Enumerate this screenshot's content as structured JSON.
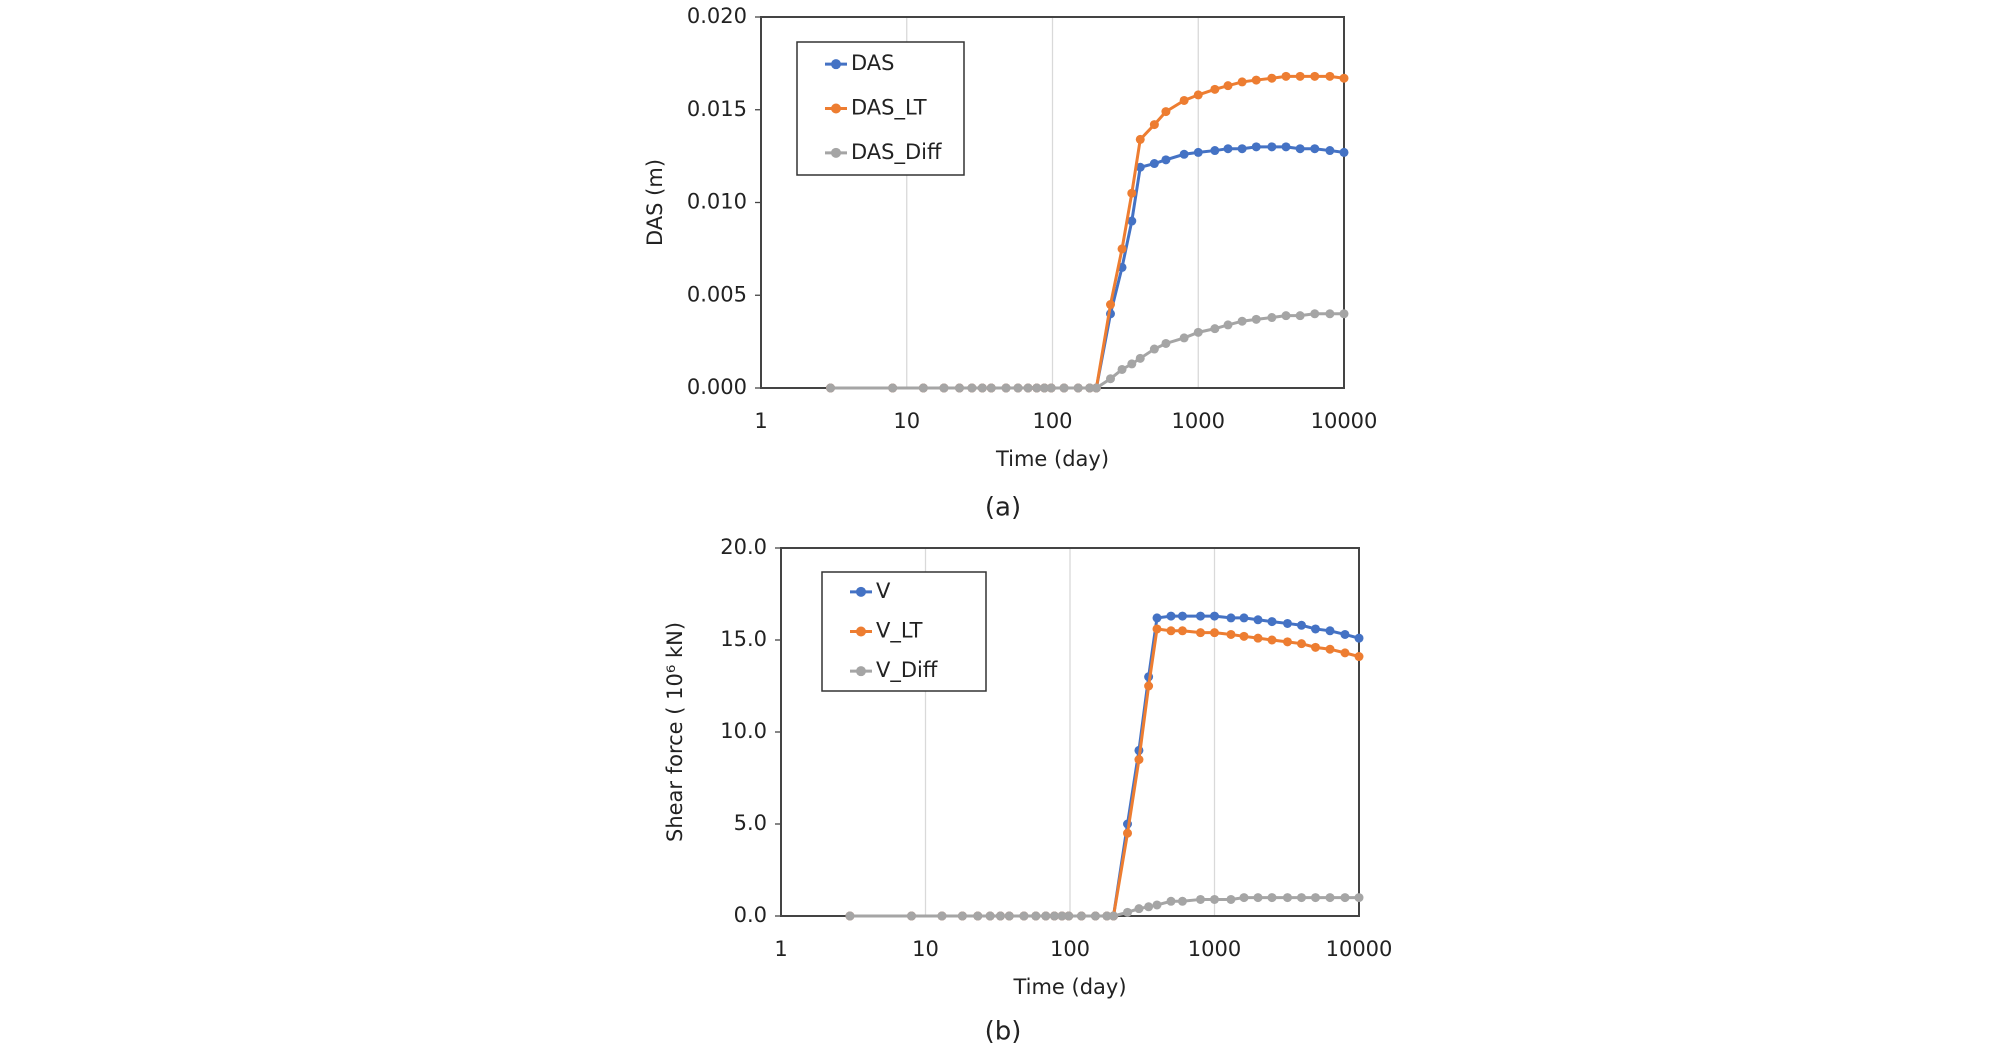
{
  "chart_data": [
    {
      "type": "line",
      "x_label": "Time (day)",
      "y_label": "DAS (m)",
      "caption": "(a)",
      "x": [
        3,
        8,
        13,
        18,
        23,
        28,
        33,
        38,
        48,
        58,
        68,
        78,
        88,
        98,
        120,
        150,
        180,
        200,
        250,
        300,
        350,
        400,
        500,
        600,
        800,
        1000,
        1300,
        1600,
        2000,
        2500,
        3200,
        4000,
        5000,
        6300,
        8000,
        10000
      ],
      "series": [
        {
          "name": "DAS",
          "color": "#4472c4",
          "values": [
            0,
            0,
            0,
            0,
            0,
            0,
            0,
            0,
            0,
            0,
            0,
            0,
            0,
            0,
            0,
            0,
            0,
            0,
            0.004,
            0.0065,
            0.009,
            0.0119,
            0.0121,
            0.0123,
            0.0126,
            0.0127,
            0.0128,
            0.0129,
            0.0129,
            0.013,
            0.013,
            0.013,
            0.0129,
            0.0129,
            0.0128,
            0.0127
          ]
        },
        {
          "name": "DAS_LT",
          "color": "#ed7d31",
          "values": [
            0,
            0,
            0,
            0,
            0,
            0,
            0,
            0,
            0,
            0,
            0,
            0,
            0,
            0,
            0,
            0,
            0,
            0,
            0.0045,
            0.0075,
            0.0105,
            0.0134,
            0.0142,
            0.0149,
            0.0155,
            0.0158,
            0.0161,
            0.0163,
            0.0165,
            0.0166,
            0.0167,
            0.0168,
            0.0168,
            0.0168,
            0.0168,
            0.0167
          ]
        },
        {
          "name": "DAS_Diff",
          "color": "#a5a5a5",
          "values": [
            0,
            0,
            0,
            0,
            0,
            0,
            0,
            0,
            0,
            0,
            0,
            0,
            0,
            0,
            0,
            0,
            0,
            0,
            0.0005,
            0.001,
            0.0013,
            0.0016,
            0.0021,
            0.0024,
            0.0027,
            0.003,
            0.0032,
            0.0034,
            0.0036,
            0.0037,
            0.0038,
            0.0039,
            0.0039,
            0.004,
            0.004,
            0.004
          ]
        }
      ],
      "xlim": [
        1,
        10000
      ],
      "xticks": [
        1,
        10,
        100,
        1000,
        10000
      ],
      "x_log": true,
      "ylim": [
        0,
        0.02
      ],
      "yticks": [
        {
          "value": 0,
          "label": "0.000"
        },
        {
          "value": 0.005,
          "label": "0.005"
        },
        {
          "value": 0.01,
          "label": "0.010"
        },
        {
          "value": 0.015,
          "label": "0.015"
        },
        {
          "value": 0.02,
          "label": "0.020"
        }
      ],
      "grid": "x",
      "legend": "upper left"
    },
    {
      "type": "line",
      "x_label": "Time (day)",
      "y_label": "Shear force ( 10⁶ kN)",
      "caption": "(b)",
      "x": [
        3,
        8,
        13,
        18,
        23,
        28,
        33,
        38,
        48,
        58,
        68,
        78,
        88,
        98,
        120,
        150,
        180,
        200,
        250,
        300,
        350,
        400,
        500,
        600,
        800,
        1000,
        1300,
        1600,
        2000,
        2500,
        3200,
        4000,
        5000,
        6300,
        8000,
        10000
      ],
      "series": [
        {
          "name": "V",
          "color": "#4472c4",
          "values": [
            0,
            0,
            0,
            0,
            0,
            0,
            0,
            0,
            0,
            0,
            0,
            0,
            0,
            0,
            0,
            0,
            0,
            0,
            5,
            9,
            13,
            16.2,
            16.3,
            16.3,
            16.3,
            16.3,
            16.2,
            16.2,
            16.1,
            16.0,
            15.9,
            15.8,
            15.6,
            15.5,
            15.3,
            15.1
          ]
        },
        {
          "name": "V_LT",
          "color": "#ed7d31",
          "values": [
            0,
            0,
            0,
            0,
            0,
            0,
            0,
            0,
            0,
            0,
            0,
            0,
            0,
            0,
            0,
            0,
            0,
            0,
            4.5,
            8.5,
            12.5,
            15.6,
            15.5,
            15.5,
            15.4,
            15.4,
            15.3,
            15.2,
            15.1,
            15.0,
            14.9,
            14.8,
            14.6,
            14.5,
            14.3,
            14.1
          ]
        },
        {
          "name": "V_Diff",
          "color": "#a5a5a5",
          "values": [
            0,
            0,
            0,
            0,
            0,
            0,
            0,
            0,
            0,
            0,
            0,
            0,
            0,
            0,
            0,
            0,
            0,
            0,
            0.2,
            0.4,
            0.5,
            0.6,
            0.8,
            0.8,
            0.9,
            0.9,
            0.9,
            1.0,
            1.0,
            1.0,
            1.0,
            1.0,
            1.0,
            1.0,
            1.0,
            1.0
          ]
        }
      ],
      "xlim": [
        1,
        10000
      ],
      "xticks": [
        1,
        10,
        100,
        1000,
        10000
      ],
      "x_log": true,
      "ylim": [
        0,
        20
      ],
      "yticks": [
        {
          "value": 0,
          "label": "0.0"
        },
        {
          "value": 5,
          "label": "5.0"
        },
        {
          "value": 10,
          "label": "10.0"
        },
        {
          "value": 15,
          "label": "15.0"
        },
        {
          "value": 20,
          "label": "20.0"
        }
      ],
      "grid": "x",
      "legend": "upper left"
    }
  ]
}
